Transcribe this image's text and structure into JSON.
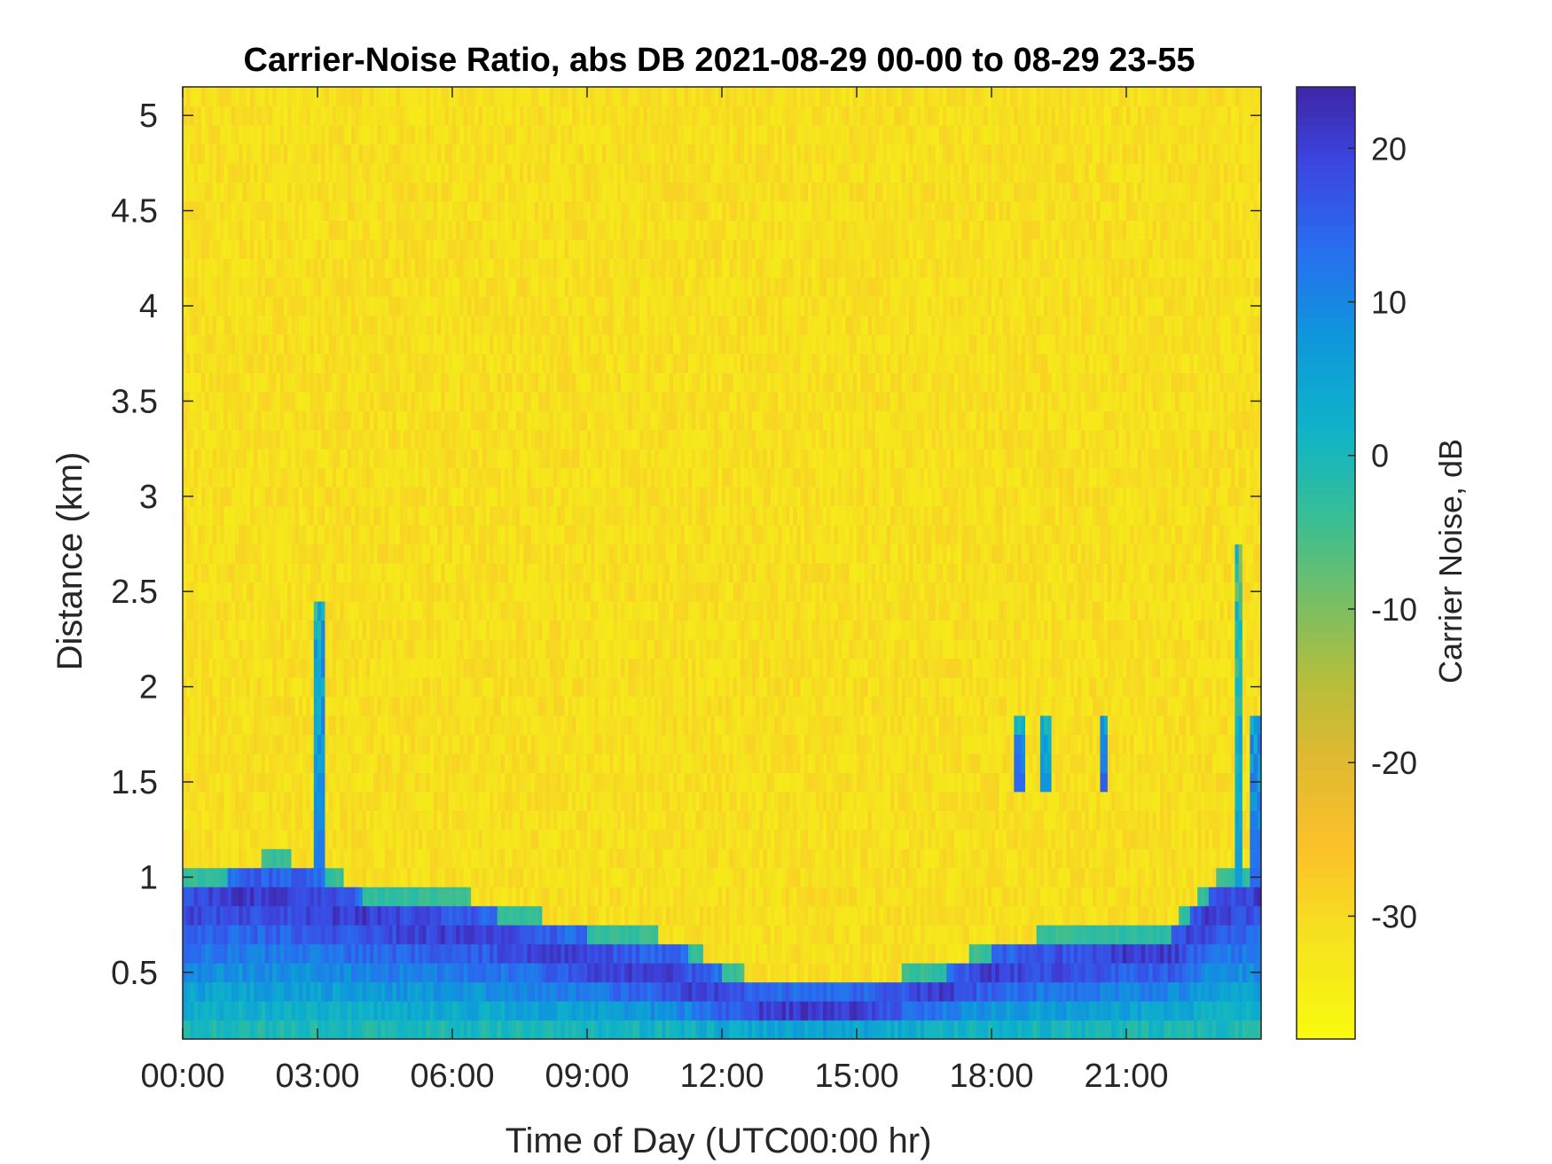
{
  "chart_data": {
    "type": "heatmap",
    "title": "Carrier-Noise Ratio, abs DB 2021-08-29 00-00 to 08-29 23-55",
    "xlabel": "Time of Day (UTC00:00 hr)",
    "ylabel": "Distance (km)",
    "colorbar_label": "Carrier Noise, dB",
    "x_range_hours": [
      0,
      24
    ],
    "y_range_km": [
      0.15,
      5.15
    ],
    "color_range_db": [
      -38,
      24
    ],
    "x_ticks": [
      {
        "value": 0,
        "label": "00:00"
      },
      {
        "value": 3,
        "label": "03:00"
      },
      {
        "value": 6,
        "label": "06:00"
      },
      {
        "value": 9,
        "label": "09:00"
      },
      {
        "value": 12,
        "label": "12:00"
      },
      {
        "value": 15,
        "label": "15:00"
      },
      {
        "value": 18,
        "label": "18:00"
      },
      {
        "value": 21,
        "label": "21:00"
      }
    ],
    "y_ticks": [
      {
        "value": 0.5,
        "label": "0.5"
      },
      {
        "value": 1,
        "label": "1"
      },
      {
        "value": 1.5,
        "label": "1.5"
      },
      {
        "value": 2,
        "label": "2"
      },
      {
        "value": 2.5,
        "label": "2.5"
      },
      {
        "value": 3,
        "label": "3"
      },
      {
        "value": 3.5,
        "label": "3.5"
      },
      {
        "value": 4,
        "label": "4"
      },
      {
        "value": 4.5,
        "label": "4.5"
      },
      {
        "value": 5,
        "label": "5"
      }
    ],
    "colorbar_ticks": [
      {
        "value": 20,
        "label": "20"
      },
      {
        "value": 10,
        "label": "10"
      },
      {
        "value": 0,
        "label": "0"
      },
      {
        "value": -10,
        "label": "-10"
      },
      {
        "value": -20,
        "label": "-20"
      },
      {
        "value": -30,
        "label": "-30"
      }
    ],
    "background_level_db": -31,
    "boundary_layer": {
      "time_hours": [
        0,
        1,
        2,
        3,
        4,
        5,
        6,
        7,
        8,
        9,
        10,
        11,
        12,
        13,
        14,
        15,
        16,
        17,
        18,
        19,
        20,
        21,
        22,
        23,
        24
      ],
      "top_km": [
        1.03,
        1.05,
        1.12,
        1.07,
        0.95,
        0.93,
        0.93,
        0.85,
        0.8,
        0.75,
        0.73,
        0.68,
        0.55,
        0.45,
        0.45,
        0.45,
        0.5,
        0.55,
        0.65,
        0.7,
        0.72,
        0.75,
        0.75,
        1.0,
        1.05
      ],
      "core_km": [
        0.85,
        0.9,
        0.9,
        0.85,
        0.8,
        0.75,
        0.72,
        0.7,
        0.62,
        0.55,
        0.5,
        0.45,
        0.35,
        0.3,
        0.3,
        0.3,
        0.35,
        0.4,
        0.5,
        0.55,
        0.55,
        0.6,
        0.6,
        0.85,
        0.9
      ],
      "peak_db": 21
    },
    "features": [
      {
        "time_hours": 3.05,
        "from_km": 1.0,
        "to_km": 2.45,
        "peak_db": 12
      },
      {
        "time_hours": 18.6,
        "from_km": 1.5,
        "to_km": 1.85,
        "peak_db": 14
      },
      {
        "time_hours": 19.2,
        "from_km": 1.5,
        "to_km": 1.85,
        "peak_db": 8
      },
      {
        "time_hours": 20.5,
        "from_km": 1.5,
        "to_km": 1.85,
        "peak_db": 16
      },
      {
        "time_hours": 23.5,
        "from_km": 1.0,
        "to_km": 2.7,
        "peak_db": 6
      },
      {
        "time_hours": 23.9,
        "from_km": 1.0,
        "to_km": 1.85,
        "peak_db": 14
      }
    ]
  }
}
